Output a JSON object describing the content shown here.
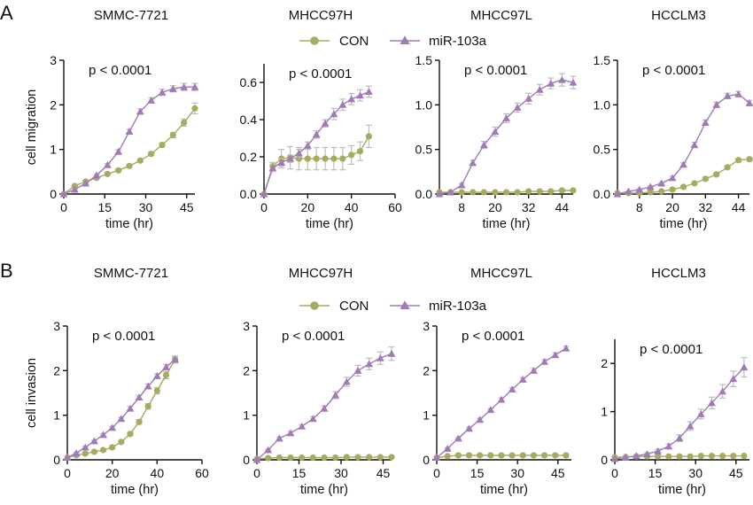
{
  "panels": [
    {
      "letter": "A",
      "legend": {
        "con_label": "CON",
        "mir_label": "miR-103a"
      }
    },
    {
      "letter": "B",
      "legend": {
        "con_label": "CON",
        "mir_label": "miR-103a"
      }
    }
  ],
  "colors": {
    "con": "#a7ab5e",
    "mir": "#a27ab8",
    "error_bar": "#bdbdbd",
    "axis": "#111111"
  },
  "chart_data": [
    {
      "type": "line",
      "title": "SMMC-7721",
      "annotation": "p < 0.0001",
      "xlabel": "time (hr)",
      "ylabel": "cell migration",
      "xlim": [
        0,
        48
      ],
      "ylim": [
        0,
        3
      ],
      "xticks": [
        0,
        15,
        30,
        45
      ],
      "yticks": [
        0,
        1,
        2,
        3
      ],
      "xtick_labels": [
        "0",
        "15",
        "30",
        "45"
      ],
      "ytick_labels": [
        "0",
        "1",
        "2",
        "3"
      ],
      "series": [
        {
          "name": "CON",
          "x": [
            0,
            4,
            8,
            12,
            16,
            20,
            24,
            28,
            32,
            36,
            40,
            44,
            48
          ],
          "y": [
            0,
            0.18,
            0.28,
            0.36,
            0.45,
            0.53,
            0.63,
            0.75,
            0.9,
            1.1,
            1.32,
            1.6,
            1.92
          ],
          "err": [
            0,
            0.02,
            0.02,
            0.02,
            0.02,
            0.03,
            0.03,
            0.03,
            0.04,
            0.05,
            0.06,
            0.08,
            0.12
          ]
        },
        {
          "name": "miR-103a",
          "x": [
            0,
            4,
            8,
            12,
            16,
            20,
            24,
            28,
            32,
            36,
            40,
            44,
            48
          ],
          "y": [
            0,
            0.1,
            0.24,
            0.42,
            0.65,
            0.95,
            1.4,
            1.85,
            2.1,
            2.28,
            2.36,
            2.4,
            2.4
          ],
          "err": [
            0,
            0.02,
            0.02,
            0.02,
            0.03,
            0.04,
            0.05,
            0.06,
            0.06,
            0.07,
            0.07,
            0.08,
            0.08
          ]
        }
      ]
    },
    {
      "type": "line",
      "title": "MHCC97H",
      "annotation": "p < 0.0001",
      "xlabel": "time (hr)",
      "ylabel": "",
      "xlim": [
        0,
        60
      ],
      "ylim": [
        0,
        0.7
      ],
      "xticks": [
        0,
        20,
        40,
        60
      ],
      "yticks": [
        0,
        0.2,
        0.4,
        0.6
      ],
      "xtick_labels": [
        "0",
        "20",
        "40",
        "60"
      ],
      "ytick_labels": [
        "0.0",
        "0.2",
        "0.4",
        "0.6"
      ],
      "series": [
        {
          "name": "CON",
          "x": [
            0,
            4,
            8,
            12,
            16,
            20,
            24,
            28,
            32,
            36,
            40,
            44,
            48
          ],
          "y": [
            0,
            0.15,
            0.19,
            0.195,
            0.19,
            0.19,
            0.19,
            0.19,
            0.19,
            0.19,
            0.21,
            0.23,
            0.31
          ],
          "err": [
            0,
            0.02,
            0.05,
            0.06,
            0.06,
            0.06,
            0.06,
            0.06,
            0.06,
            0.06,
            0.05,
            0.05,
            0.06
          ]
        },
        {
          "name": "miR-103a",
          "x": [
            0,
            4,
            8,
            12,
            16,
            20,
            24,
            28,
            32,
            36,
            40,
            44,
            48
          ],
          "y": [
            0,
            0.14,
            0.17,
            0.19,
            0.22,
            0.26,
            0.32,
            0.38,
            0.43,
            0.48,
            0.51,
            0.53,
            0.55
          ],
          "err": [
            0,
            0.02,
            0.02,
            0.02,
            0.02,
            0.02,
            0.02,
            0.02,
            0.03,
            0.03,
            0.03,
            0.03,
            0.03
          ]
        }
      ]
    },
    {
      "type": "line",
      "title": "MHCC97L",
      "annotation": "p < 0.0001",
      "xlabel": "time (hr)",
      "ylabel": "",
      "xlim": [
        0,
        48
      ],
      "ylim": [
        0,
        1.5
      ],
      "xticks": [
        8,
        20,
        32,
        44
      ],
      "yticks": [
        0,
        0.5,
        1.0,
        1.5
      ],
      "xtick_labels": [
        "8",
        "20",
        "32",
        "44"
      ],
      "ytick_labels": [
        "0.0",
        "0.5",
        "1.0",
        "1.5"
      ],
      "series": [
        {
          "name": "CON",
          "x": [
            0,
            4,
            8,
            12,
            16,
            20,
            24,
            28,
            32,
            36,
            40,
            44,
            48
          ],
          "y": [
            0.02,
            0.02,
            0.02,
            0.02,
            0.02,
            0.02,
            0.02,
            0.02,
            0.03,
            0.03,
            0.03,
            0.04,
            0.04
          ],
          "err": [
            0,
            0,
            0,
            0,
            0,
            0,
            0,
            0,
            0,
            0,
            0,
            0.01,
            0.01
          ]
        },
        {
          "name": "miR-103a",
          "x": [
            0,
            4,
            8,
            12,
            16,
            20,
            24,
            28,
            32,
            36,
            40,
            44,
            48
          ],
          "y": [
            0,
            0.02,
            0.1,
            0.35,
            0.55,
            0.7,
            0.85,
            0.97,
            1.07,
            1.17,
            1.24,
            1.28,
            1.25
          ],
          "err": [
            0,
            0,
            0.02,
            0.03,
            0.04,
            0.05,
            0.05,
            0.05,
            0.06,
            0.06,
            0.06,
            0.07,
            0.07
          ]
        }
      ]
    },
    {
      "type": "line",
      "title": "HCCLM3",
      "annotation": "p < 0.0001",
      "xlabel": "time (hr)",
      "ylabel": "",
      "xlim": [
        0,
        48
      ],
      "ylim": [
        0,
        1.5
      ],
      "xticks": [
        8,
        20,
        32,
        44
      ],
      "yticks": [
        0,
        0.5,
        1.0,
        1.5
      ],
      "xtick_labels": [
        "8",
        "20",
        "32",
        "44"
      ],
      "ytick_labels": [
        "0.0",
        "0.5",
        "1.0",
        "1.5"
      ],
      "series": [
        {
          "name": "CON",
          "x": [
            0,
            4,
            8,
            12,
            16,
            20,
            24,
            28,
            32,
            36,
            40,
            44,
            48
          ],
          "y": [
            0.01,
            0.01,
            0.01,
            0.02,
            0.03,
            0.05,
            0.08,
            0.12,
            0.17,
            0.22,
            0.3,
            0.38,
            0.39
          ],
          "err": [
            0,
            0,
            0,
            0,
            0,
            0.01,
            0.01,
            0.01,
            0.02,
            0.02,
            0.02,
            0.02,
            0.02
          ]
        },
        {
          "name": "miR-103a",
          "x": [
            0,
            4,
            8,
            12,
            16,
            20,
            24,
            28,
            32,
            36,
            40,
            44,
            48
          ],
          "y": [
            0,
            0.03,
            0.05,
            0.08,
            0.12,
            0.18,
            0.33,
            0.55,
            0.8,
            1.0,
            1.1,
            1.12,
            1.02
          ],
          "err": [
            0,
            0,
            0.01,
            0.01,
            0.01,
            0.02,
            0.02,
            0.03,
            0.03,
            0.03,
            0.03,
            0.03,
            0.03
          ]
        }
      ]
    },
    {
      "type": "line",
      "title": "SMMC-7721",
      "annotation": "p < 0.0001",
      "xlabel": "time (hr)",
      "ylabel": "cell invasion",
      "xlim": [
        0,
        60
      ],
      "ylim": [
        0,
        3
      ],
      "xticks": [
        0,
        20,
        40,
        60
      ],
      "yticks": [
        0,
        1,
        2,
        3
      ],
      "xtick_labels": [
        "0",
        "20",
        "40",
        "60"
      ],
      "ytick_labels": [
        "0",
        "1",
        "2",
        "3"
      ],
      "series": [
        {
          "name": "CON",
          "x": [
            0,
            4,
            8,
            12,
            16,
            20,
            24,
            28,
            32,
            36,
            40,
            44,
            48
          ],
          "y": [
            0.05,
            0.1,
            0.14,
            0.18,
            0.22,
            0.28,
            0.4,
            0.58,
            0.85,
            1.2,
            1.55,
            1.9,
            2.25
          ],
          "err": [
            0,
            0.02,
            0.02,
            0.02,
            0.02,
            0.03,
            0.03,
            0.04,
            0.05,
            0.06,
            0.07,
            0.08,
            0.08
          ]
        },
        {
          "name": "miR-103a",
          "x": [
            0,
            4,
            8,
            12,
            16,
            20,
            24,
            28,
            32,
            36,
            40,
            44,
            48
          ],
          "y": [
            0.05,
            0.15,
            0.28,
            0.42,
            0.56,
            0.72,
            0.92,
            1.15,
            1.4,
            1.65,
            1.88,
            2.08,
            2.25
          ],
          "err": [
            0,
            0.02,
            0.02,
            0.02,
            0.03,
            0.03,
            0.03,
            0.04,
            0.04,
            0.05,
            0.05,
            0.06,
            0.06
          ]
        }
      ]
    },
    {
      "type": "line",
      "title": "MHCC97H",
      "annotation": "p < 0.0001",
      "xlabel": "time (hr)",
      "ylabel": "",
      "xlim": [
        0,
        48
      ],
      "ylim": [
        0,
        3
      ],
      "xticks": [
        0,
        15,
        30,
        45
      ],
      "yticks": [
        0,
        1,
        2,
        3
      ],
      "xtick_labels": [
        "0",
        "15",
        "30",
        "45"
      ],
      "ytick_labels": [
        "0",
        "1",
        "2",
        "3"
      ],
      "series": [
        {
          "name": "CON",
          "x": [
            0,
            4,
            8,
            12,
            16,
            20,
            24,
            28,
            32,
            36,
            40,
            44,
            48
          ],
          "y": [
            0.02,
            0.04,
            0.05,
            0.05,
            0.05,
            0.05,
            0.05,
            0.05,
            0.06,
            0.06,
            0.06,
            0.06,
            0.06
          ],
          "err": [
            0,
            0,
            0,
            0,
            0,
            0,
            0,
            0,
            0,
            0,
            0,
            0,
            0
          ]
        },
        {
          "name": "miR-103a",
          "x": [
            0,
            4,
            8,
            12,
            16,
            20,
            24,
            28,
            32,
            36,
            40,
            44,
            48
          ],
          "y": [
            0,
            0.22,
            0.48,
            0.6,
            0.75,
            0.92,
            1.15,
            1.45,
            1.75,
            2.0,
            2.15,
            2.28,
            2.38
          ],
          "err": [
            0,
            0.02,
            0.03,
            0.04,
            0.04,
            0.05,
            0.06,
            0.08,
            0.1,
            0.12,
            0.13,
            0.14,
            0.15
          ]
        }
      ]
    },
    {
      "type": "line",
      "title": "MHCC97L",
      "annotation": "p < 0.0001",
      "xlabel": "time (hr)",
      "ylabel": "",
      "xlim": [
        0,
        50
      ],
      "ylim": [
        0,
        3
      ],
      "xticks": [
        0,
        15,
        30,
        45
      ],
      "yticks": [
        0,
        1,
        2,
        3
      ],
      "xtick_labels": [
        "0",
        "15",
        "30",
        "45"
      ],
      "ytick_labels": [
        "0",
        "1",
        "2",
        "3"
      ],
      "series": [
        {
          "name": "CON",
          "x": [
            0,
            4,
            8,
            12,
            16,
            20,
            24,
            28,
            32,
            36,
            40,
            44,
            48
          ],
          "y": [
            0.05,
            0.08,
            0.1,
            0.1,
            0.1,
            0.1,
            0.1,
            0.1,
            0.1,
            0.1,
            0.1,
            0.1,
            0.1
          ],
          "err": [
            0,
            0.01,
            0.02,
            0.02,
            0.02,
            0.02,
            0.02,
            0.02,
            0.02,
            0.02,
            0.02,
            0.02,
            0.02
          ]
        },
        {
          "name": "miR-103a",
          "x": [
            0,
            4,
            8,
            12,
            16,
            20,
            24,
            28,
            32,
            36,
            40,
            44,
            48
          ],
          "y": [
            0.05,
            0.25,
            0.48,
            0.7,
            0.9,
            1.12,
            1.35,
            1.58,
            1.8,
            2.0,
            2.2,
            2.35,
            2.5
          ],
          "err": [
            0,
            0.02,
            0.02,
            0.03,
            0.03,
            0.03,
            0.04,
            0.04,
            0.04,
            0.05,
            0.05,
            0.05,
            0.05
          ]
        }
      ]
    },
    {
      "type": "line",
      "title": "HCCLM3",
      "annotation": "p < 0.0001",
      "xlabel": "time (hr)",
      "ylabel": "",
      "xlim": [
        0,
        50
      ],
      "ylim": [
        0,
        2.5
      ],
      "xticks": [
        0,
        15,
        30,
        45
      ],
      "yticks": [
        0,
        1,
        2
      ],
      "xtick_labels": [
        "0",
        "15",
        "30",
        "45"
      ],
      "ytick_labels": [
        "0",
        "1",
        "2"
      ],
      "series": [
        {
          "name": "CON",
          "x": [
            0,
            4,
            8,
            12,
            16,
            20,
            24,
            28,
            32,
            36,
            40,
            44,
            48
          ],
          "y": [
            0.05,
            0.06,
            0.07,
            0.07,
            0.07,
            0.07,
            0.07,
            0.07,
            0.08,
            0.08,
            0.08,
            0.08,
            0.08
          ],
          "err": [
            0,
            0,
            0,
            0,
            0,
            0,
            0,
            0,
            0,
            0,
            0,
            0,
            0
          ]
        },
        {
          "name": "miR-103a",
          "x": [
            0,
            4,
            8,
            12,
            16,
            20,
            24,
            28,
            32,
            36,
            40,
            44,
            48
          ],
          "y": [
            0.02,
            0.05,
            0.08,
            0.12,
            0.18,
            0.28,
            0.45,
            0.7,
            0.95,
            1.18,
            1.42,
            1.68,
            1.92
          ],
          "err": [
            0,
            0.02,
            0.02,
            0.03,
            0.04,
            0.05,
            0.07,
            0.09,
            0.1,
            0.12,
            0.14,
            0.16,
            0.2
          ]
        }
      ]
    }
  ]
}
